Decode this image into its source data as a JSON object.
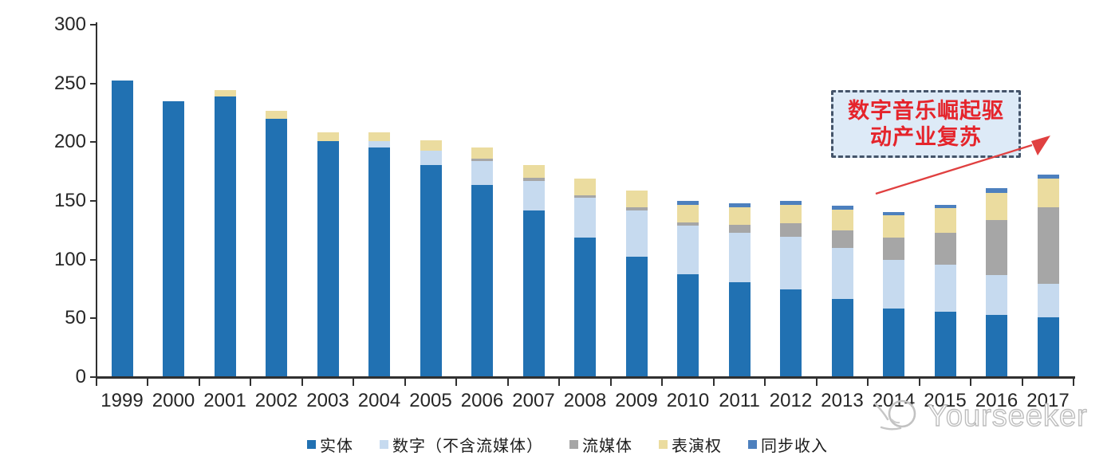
{
  "chart_data": {
    "type": "bar",
    "stacked": true,
    "title": "",
    "xlabel": "",
    "ylabel": "",
    "categories": [
      "1999",
      "2000",
      "2001",
      "2002",
      "2003",
      "2004",
      "2005",
      "2006",
      "2007",
      "2008",
      "2009",
      "2010",
      "2011",
      "2012",
      "2013",
      "2014",
      "2015",
      "2016",
      "2017"
    ],
    "series": [
      {
        "name": "实体",
        "color": "#2171B2",
        "values": [
          252,
          234,
          238,
          219,
          200,
          195,
          180,
          163,
          141,
          118,
          102,
          87,
          80,
          74,
          66,
          58,
          55,
          52,
          50
        ]
      },
      {
        "name": "数字（不含流媒体）",
        "color": "#C6DAEF",
        "values": [
          0,
          0,
          0,
          0,
          0,
          5,
          12,
          20,
          25,
          34,
          39,
          41,
          42,
          45,
          43,
          41,
          40,
          34,
          29
        ]
      },
      {
        "name": "流媒体",
        "color": "#A6A6A6",
        "values": [
          0,
          0,
          0,
          0,
          0,
          0,
          0,
          2,
          3,
          2,
          3,
          3,
          7,
          11,
          15,
          19,
          27,
          47,
          65
        ]
      },
      {
        "name": "表演权",
        "color": "#EBDC9F",
        "values": [
          0,
          0,
          6,
          7,
          8,
          8,
          9,
          10,
          11,
          14,
          14,
          15,
          15,
          16,
          18,
          19,
          21,
          23,
          24
        ]
      },
      {
        "name": "同步收入",
        "color": "#4D80BE",
        "values": [
          0,
          0,
          0,
          0,
          0,
          0,
          0,
          0,
          0,
          0,
          0,
          3,
          3,
          3,
          3,
          3,
          3,
          4,
          4
        ]
      }
    ],
    "ylim": [
      0,
      300
    ],
    "yticks": [
      0,
      50,
      100,
      150,
      200,
      250,
      300
    ],
    "grid": false,
    "legend_position": "bottom"
  },
  "annotation": {
    "line1": "数字音乐崛起驱",
    "line2": "动产业复苏",
    "text_color": "#E5242B",
    "border_color": "#44546A",
    "fill_color": "#DDEAF7",
    "arrow_color": "#E04040"
  },
  "watermark": {
    "text": "Yourseeker",
    "color": "#BDBDBD"
  },
  "axis": {
    "line_color": "#303030",
    "label_color": "#262626"
  }
}
